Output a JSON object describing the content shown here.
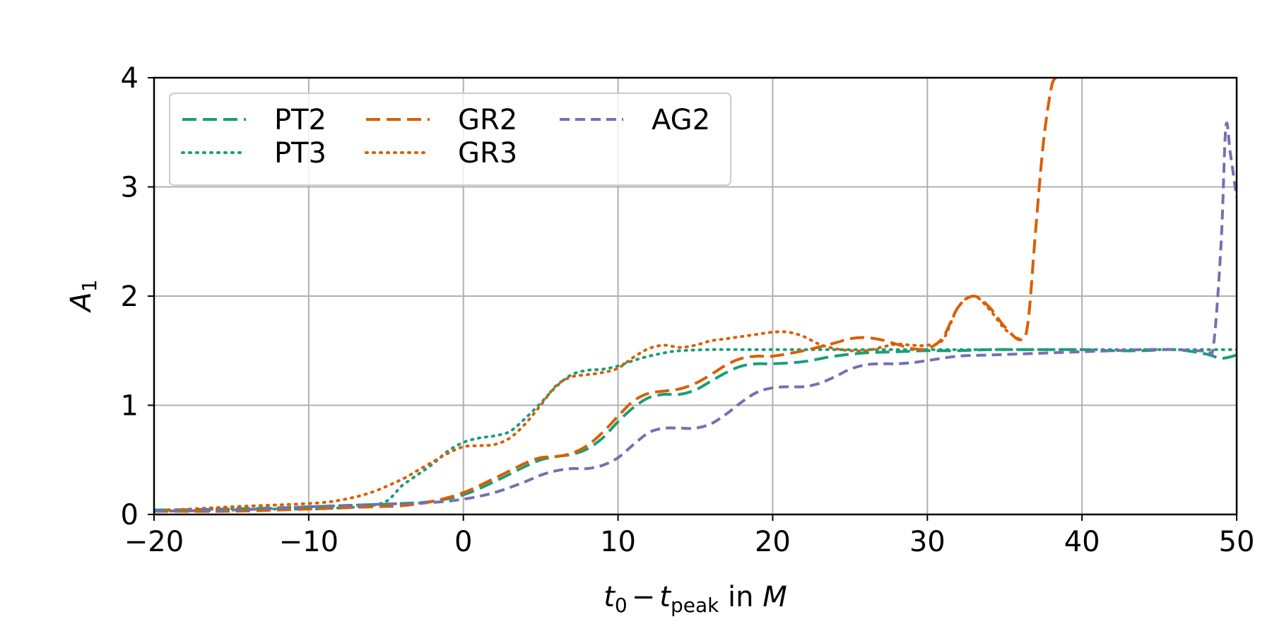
{
  "chart_data": {
    "type": "line",
    "title": "",
    "xlabel": {
      "base": "t",
      "sub": "0",
      "minus": "−",
      "base2": "t",
      "sub2": "peak",
      "suffix": " in ",
      "unit": "M"
    },
    "ylabel": {
      "base": "A",
      "sub": "1"
    },
    "xlim": [
      -20,
      50
    ],
    "ylim": [
      0,
      4
    ],
    "xticks": [
      -20,
      -10,
      0,
      10,
      20,
      30,
      40,
      50
    ],
    "xtick_labels": [
      "−20",
      "−10",
      "0",
      "10",
      "20",
      "30",
      "40",
      "50"
    ],
    "yticks": [
      0,
      1,
      2,
      3,
      4
    ],
    "ytick_labels": [
      "0",
      "1",
      "2",
      "3",
      "4"
    ],
    "grid": true,
    "legend_position": "top-left",
    "series": [
      {
        "name": "PT2",
        "color": "#1b9e77",
        "style": "dashed",
        "x": [
          -20,
          -15,
          -10,
          -8,
          -6,
          -4,
          -2,
          0,
          2,
          4,
          5,
          6,
          7,
          8,
          9,
          10,
          11,
          12,
          13,
          14,
          15,
          16,
          17,
          18,
          19,
          20,
          22,
          24,
          26,
          28,
          30,
          32,
          34,
          36,
          38,
          40,
          42,
          44,
          46,
          48,
          49,
          50
        ],
        "y": [
          0.04,
          0.05,
          0.07,
          0.08,
          0.09,
          0.1,
          0.12,
          0.18,
          0.3,
          0.44,
          0.5,
          0.53,
          0.55,
          0.6,
          0.7,
          0.85,
          0.98,
          1.07,
          1.1,
          1.1,
          1.14,
          1.22,
          1.3,
          1.36,
          1.38,
          1.38,
          1.4,
          1.45,
          1.48,
          1.49,
          1.5,
          1.5,
          1.51,
          1.51,
          1.51,
          1.51,
          1.5,
          1.5,
          1.51,
          1.47,
          1.43,
          1.46
        ]
      },
      {
        "name": "PT3",
        "color": "#1b9e77",
        "style": "dotted",
        "x": [
          -20,
          -15,
          -10,
          -8,
          -6,
          -5,
          -4.5,
          -4,
          -3,
          -2,
          -1,
          0,
          1,
          2,
          3,
          4,
          5,
          6,
          7,
          8,
          9,
          10,
          11,
          12,
          13,
          14,
          16,
          18,
          20,
          22,
          24,
          26,
          28,
          30,
          32,
          34,
          36,
          38,
          40,
          42,
          44,
          46,
          48,
          50
        ],
        "y": [
          0.04,
          0.05,
          0.05,
          0.06,
          0.08,
          0.12,
          0.18,
          0.26,
          0.36,
          0.46,
          0.58,
          0.66,
          0.7,
          0.72,
          0.76,
          0.88,
          1.02,
          1.17,
          1.28,
          1.32,
          1.33,
          1.36,
          1.41,
          1.45,
          1.48,
          1.5,
          1.51,
          1.51,
          1.51,
          1.51,
          1.51,
          1.51,
          1.51,
          1.51,
          1.51,
          1.51,
          1.51,
          1.51,
          1.51,
          1.51,
          1.51,
          1.51,
          1.51,
          1.51
        ]
      },
      {
        "name": "GR2",
        "color": "#d95f02",
        "style": "dashed",
        "x": [
          -20,
          -15,
          -10,
          -6,
          -4,
          -2,
          0,
          2,
          4,
          5,
          6,
          7,
          8,
          9,
          10,
          11,
          12,
          13,
          14,
          15,
          16,
          17,
          18,
          19,
          20,
          22,
          24,
          25,
          26,
          27,
          28,
          29,
          30,
          31,
          32,
          33,
          34,
          35,
          36,
          36.5,
          37,
          37.5,
          38,
          38.3
        ],
        "y": [
          0.03,
          0.03,
          0.05,
          0.07,
          0.08,
          0.12,
          0.2,
          0.33,
          0.47,
          0.52,
          0.53,
          0.56,
          0.63,
          0.75,
          0.9,
          1.04,
          1.11,
          1.13,
          1.15,
          1.2,
          1.28,
          1.37,
          1.43,
          1.45,
          1.45,
          1.5,
          1.57,
          1.61,
          1.62,
          1.6,
          1.56,
          1.52,
          1.52,
          1.62,
          1.9,
          2.0,
          1.9,
          1.72,
          1.6,
          1.75,
          2.6,
          3.4,
          3.9,
          4.0
        ]
      },
      {
        "name": "GR3",
        "color": "#d95f02",
        "style": "dotted",
        "x": [
          -20,
          -15,
          -10,
          -8,
          -6,
          -4,
          -3,
          -2,
          -1,
          0,
          1,
          2,
          3,
          4,
          5,
          6,
          7,
          8,
          9,
          10,
          11,
          12,
          13,
          14,
          15,
          16,
          17,
          18,
          19,
          20,
          21,
          22,
          23,
          24,
          25,
          26,
          27,
          28,
          29,
          30,
          31,
          32,
          33,
          34,
          35,
          36
        ],
        "y": [
          0.03,
          0.07,
          0.1,
          0.13,
          0.2,
          0.32,
          0.4,
          0.48,
          0.56,
          0.62,
          0.63,
          0.64,
          0.7,
          0.83,
          1.0,
          1.18,
          1.26,
          1.28,
          1.3,
          1.34,
          1.44,
          1.52,
          1.55,
          1.53,
          1.55,
          1.59,
          1.61,
          1.63,
          1.65,
          1.67,
          1.67,
          1.63,
          1.56,
          1.52,
          1.5,
          1.5,
          1.53,
          1.56,
          1.55,
          1.55,
          1.6,
          1.9,
          2.0,
          1.88,
          1.7,
          1.6
        ]
      },
      {
        "name": "AG2",
        "color": "#7570b3",
        "style": "dashed",
        "x": [
          -20,
          -15,
          -10,
          -6,
          -4,
          -2,
          0,
          2,
          4,
          5,
          6,
          7,
          8,
          9,
          10,
          11,
          12,
          13,
          14,
          15,
          16,
          17,
          18,
          19,
          20,
          21,
          22,
          23,
          24,
          25,
          26,
          27,
          28,
          29,
          30,
          32,
          34,
          36,
          38,
          40,
          42,
          44,
          46,
          48,
          48.5,
          49,
          49.3,
          49.6,
          50
        ],
        "y": [
          0.03,
          0.04,
          0.07,
          0.09,
          0.1,
          0.11,
          0.14,
          0.2,
          0.3,
          0.36,
          0.4,
          0.42,
          0.42,
          0.45,
          0.52,
          0.64,
          0.75,
          0.79,
          0.79,
          0.79,
          0.83,
          0.92,
          1.03,
          1.12,
          1.16,
          1.17,
          1.17,
          1.2,
          1.26,
          1.33,
          1.37,
          1.38,
          1.38,
          1.39,
          1.41,
          1.45,
          1.46,
          1.47,
          1.48,
          1.49,
          1.5,
          1.51,
          1.51,
          1.5,
          1.55,
          2.5,
          3.55,
          3.3,
          2.9
        ]
      }
    ]
  }
}
